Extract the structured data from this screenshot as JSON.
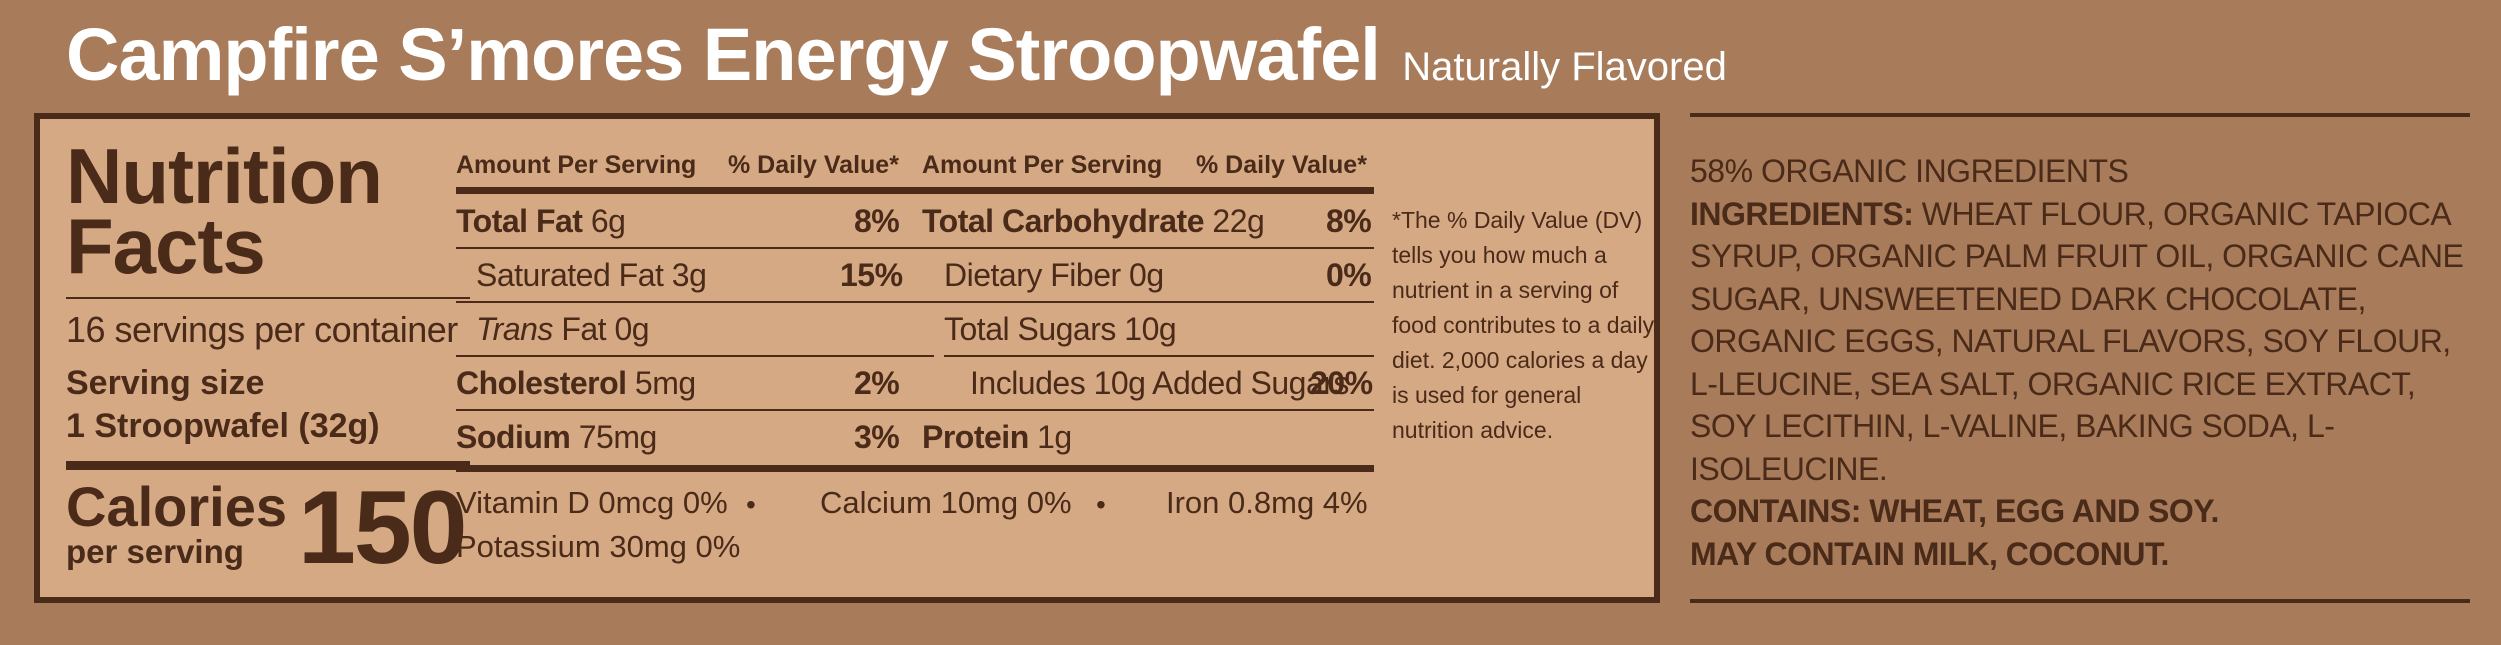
{
  "header": {
    "title": "Campfire S’mores Energy Stroopwafel",
    "subtitle": "Naturally Flavored"
  },
  "facts": {
    "heading_line1": "Nutrition",
    "heading_line2": "Facts",
    "servings": "16 servings per container",
    "serving_size_label": "Serving size",
    "serving_size_value": "1 Stroopwafel (32g)",
    "calories_label": "Calories",
    "calories_sub": "per serving",
    "calories_value": "150"
  },
  "left_column": {
    "head_amount": "Amount Per Serving",
    "head_dv": "% Daily Value*",
    "rows": [
      {
        "name": "Total Fat",
        "amount": "6g",
        "dv": "8%"
      },
      {
        "name": "Saturated Fat",
        "amount": "3g",
        "dv": "15%"
      },
      {
        "name": "Trans",
        "amount": "Fat 0g",
        "dv": ""
      },
      {
        "name": "Cholesterol",
        "amount": "5mg",
        "dv": "2%"
      },
      {
        "name": "Sodium",
        "amount": "75mg",
        "dv": "3%"
      }
    ]
  },
  "right_column": {
    "head_amount": "Amount Per Serving",
    "head_dv": "% Daily Value*",
    "rows": [
      {
        "name": "Total Carbohydrate",
        "amount": "22g",
        "dv": "8%"
      },
      {
        "name": "Dietary Fiber",
        "amount": "0g",
        "dv": "0%"
      },
      {
        "name": "Total Sugars 10g",
        "amount": "",
        "dv": ""
      },
      {
        "name": "Includes 10g Added Sugars",
        "amount": "",
        "dv": "20%"
      },
      {
        "name": "Protein",
        "amount": "1g",
        "dv": ""
      }
    ]
  },
  "vitamins": {
    "vitamin_d": "Vitamin D 0mcg 0%",
    "calcium": "Calcium 10mg 0%",
    "iron": "Iron 0.8mg 4%",
    "potassium": "Potassium 30mg 0%",
    "bullet": "•"
  },
  "footnote": "*The % Daily Value (DV) tells you how much a nutrient in a serving of food contributes to a daily diet. 2,000 calories a day is used for general nutrition advice.",
  "ingredients": {
    "organic_pct": "58% ORGANIC INGREDIENTS",
    "label": "INGREDIENTS:",
    "list": "WHEAT FLOUR, ORGANIC TAPIOCA SYRUP, ORGANIC PALM FRUIT OIL, ORGANIC CANE SUGAR, UNSWEETENED DARK CHOCOLATE, ORGANIC EGGS, NATURAL FLAVORS, SOY FLOUR, L-LEUCINE, SEA SALT, ORGANIC RICE EXTRACT, SOY LECITHIN, L-VALINE, BAKING SODA, L-ISOLEUCINE.",
    "contains": "CONTAINS: WHEAT, EGG AND SOY.",
    "may_contain": "MAY CONTAIN MILK, COCONUT."
  },
  "colors": {
    "background": "#a87b5a",
    "panel": "#d6a985",
    "text": "#4a2a18",
    "title": "#ffffff"
  }
}
